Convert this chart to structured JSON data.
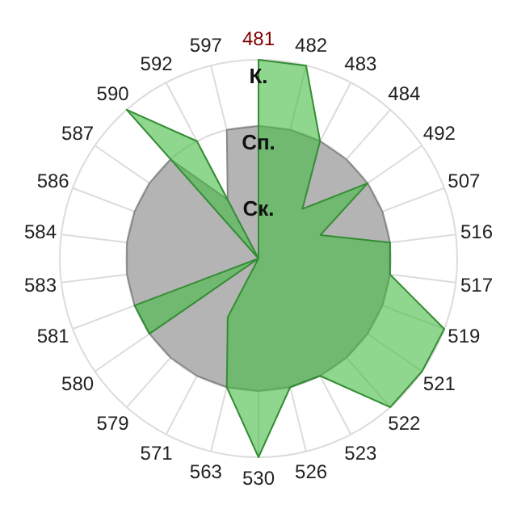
{
  "chart_data": {
    "type": "radar",
    "categories": [
      "481",
      "482",
      "483",
      "484",
      "492",
      "507",
      "516",
      "517",
      "519",
      "521",
      "522",
      "523",
      "526",
      "530",
      "563",
      "571",
      "579",
      "580",
      "581",
      "583",
      "584",
      "586",
      "587",
      "590",
      "592",
      "597"
    ],
    "series": [
      {
        "color": "#b4b4b4",
        "values": [
          2,
          2,
          2,
          2,
          2,
          2,
          2,
          2,
          2,
          2,
          2,
          2,
          2,
          2,
          2,
          2,
          2,
          2,
          2,
          2,
          2,
          2,
          2,
          2,
          1,
          2
        ]
      },
      {
        "color": "#44bb44",
        "values": [
          3,
          3,
          2,
          1,
          2,
          1,
          2,
          2,
          3,
          3,
          3,
          2,
          2,
          3,
          2,
          1,
          0,
          2,
          2,
          0,
          0,
          0,
          0,
          3,
          2,
          0
        ]
      }
    ],
    "ylim": [
      0,
      3
    ],
    "yticks": [
      {
        "value": 1,
        "label": "Ск."
      },
      {
        "value": 2,
        "label": "Сп."
      },
      {
        "value": 3,
        "label": "К."
      }
    ],
    "grid": true
  }
}
